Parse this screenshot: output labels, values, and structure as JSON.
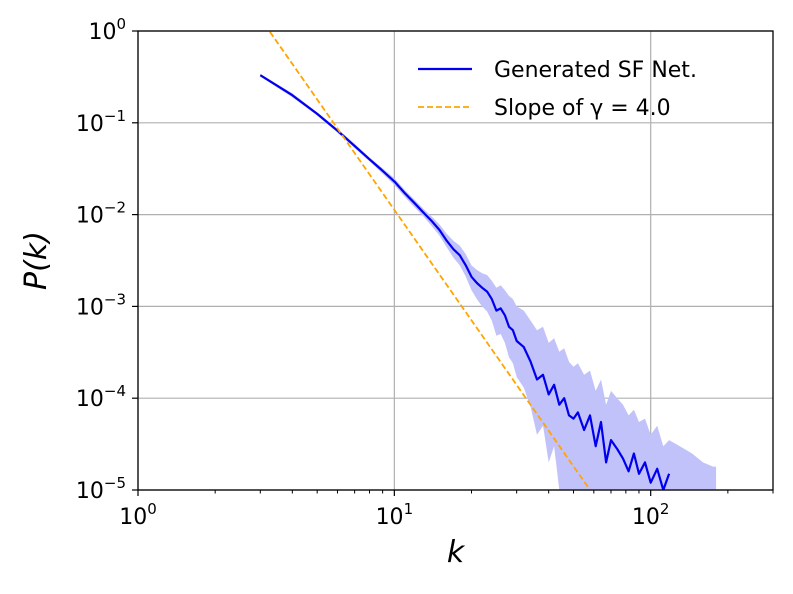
{
  "chart_data": {
    "type": "line",
    "title": "",
    "xlabel": "k",
    "ylabel": "P(k)",
    "xscale": "log",
    "yscale": "log",
    "xlim": [
      1,
      300
    ],
    "ylim": [
      1e-05,
      1
    ],
    "grid": true,
    "x_ticks": [
      {
        "value": 1,
        "base": "10",
        "exp": "0"
      },
      {
        "value": 10,
        "base": "10",
        "exp": "1"
      },
      {
        "value": 100,
        "base": "10",
        "exp": "2"
      }
    ],
    "y_ticks": [
      {
        "value": 1,
        "base": "10",
        "exp": "0"
      },
      {
        "value": 0.1,
        "base": "10",
        "exp": "−1"
      },
      {
        "value": 0.01,
        "base": "10",
        "exp": "−2"
      },
      {
        "value": 0.001,
        "base": "10",
        "exp": "−3"
      },
      {
        "value": 0.0001,
        "base": "10",
        "exp": "−4"
      },
      {
        "value": 1e-05,
        "base": "10",
        "exp": "−5"
      }
    ],
    "legend": {
      "position": "upper-right",
      "entries": [
        {
          "label": "Generated SF Net.",
          "color": "#0000ee",
          "style": "solid"
        },
        {
          "label": "Slope of γ = 4.0",
          "color": "#ffa500",
          "style": "dashed"
        }
      ]
    },
    "series": [
      {
        "name": "Generated SF Net.",
        "color": "#0000ee",
        "band_color": "#c2c2fb",
        "x": [
          3,
          4,
          5,
          6,
          7,
          8,
          9,
          10,
          11,
          12,
          13,
          14,
          15,
          16,
          17,
          18,
          19,
          20,
          21,
          22,
          23,
          24,
          25,
          26,
          27,
          28,
          29,
          30,
          32,
          34,
          36,
          38,
          40,
          42,
          44,
          46,
          48,
          50,
          52,
          55,
          58,
          61,
          64,
          67,
          70,
          74,
          78,
          82,
          86,
          90,
          95,
          100,
          106,
          112,
          118
        ],
        "y": [
          0.33,
          0.2,
          0.125,
          0.082,
          0.056,
          0.04,
          0.03,
          0.023,
          0.017,
          0.0133,
          0.0105,
          0.0085,
          0.0068,
          0.0052,
          0.0042,
          0.0036,
          0.0028,
          0.0021,
          0.0018,
          0.0016,
          0.00145,
          0.0012,
          0.0009,
          0.00095,
          0.0008,
          0.0006,
          0.00055,
          0.00042,
          0.00036,
          0.00025,
          0.00016,
          0.00018,
          0.00011,
          0.00014,
          8.5e-05,
          0.0001,
          6.5e-05,
          6e-05,
          7e-05,
          4.5e-05,
          6.5e-05,
          3e-05,
          5.5e-05,
          2e-05,
          3.5e-05,
          2.8e-05,
          2.2e-05,
          1.6e-05,
          2.5e-05,
          1.5e-05,
          2e-05,
          1.2e-05,
          1.7e-05,
          1e-05,
          1.5e-05
        ],
        "band_upper": [
          0.34,
          0.21,
          0.13,
          0.086,
          0.059,
          0.042,
          0.032,
          0.025,
          0.0185,
          0.0145,
          0.0115,
          0.0095,
          0.0078,
          0.0062,
          0.0052,
          0.0046,
          0.0037,
          0.0028,
          0.0025,
          0.0023,
          0.0022,
          0.0019,
          0.0016,
          0.0017,
          0.0015,
          0.0013,
          0.0012,
          0.001,
          0.0009,
          0.0007,
          0.00055,
          0.0006,
          0.0004,
          0.00045,
          0.00032,
          0.00035,
          0.00025,
          0.00022,
          0.00024,
          0.00018,
          0.0002,
          0.00012,
          0.00016,
          8.5e-05,
          0.00012,
          0.0001,
          8.5e-05,
          6.5e-05,
          7.5e-05,
          5.5e-05,
          6e-05,
          4e-05,
          5e-05,
          3e-05,
          3.5e-05
        ],
        "band_lower": [
          0.32,
          0.19,
          0.12,
          0.078,
          0.053,
          0.038,
          0.028,
          0.021,
          0.0155,
          0.012,
          0.0095,
          0.0075,
          0.0059,
          0.0044,
          0.0034,
          0.0028,
          0.0021,
          0.0015,
          0.0012,
          0.001,
          0.00088,
          0.0007,
          0.00048,
          0.0005,
          0.0004,
          0.00028,
          0.00024,
          0.00017,
          0.00013,
          8e-05,
          4e-05,
          5e-05,
          2e-05,
          3e-05,
          1e-05,
          1e-05,
          1e-05,
          1e-05,
          1e-05,
          1e-05,
          1e-05,
          1e-05,
          1e-05,
          1e-05,
          1e-05,
          1e-05,
          1e-05,
          1e-05,
          1e-05,
          1e-05,
          1e-05,
          1e-05,
          1e-05,
          1e-05,
          1e-05
        ],
        "band_extra_x": [
          130,
          145,
          160,
          175,
          180
        ],
        "band_extra_upper": [
          3e-05,
          2.5e-05,
          2e-05,
          1.8e-05,
          1.8e-05
        ]
      },
      {
        "name": "Slope of γ = 4.0",
        "color": "#ffa500",
        "style": "dashed",
        "x": [
          3.27,
          58
        ],
        "y": [
          0.98,
          1e-05
        ]
      }
    ]
  }
}
